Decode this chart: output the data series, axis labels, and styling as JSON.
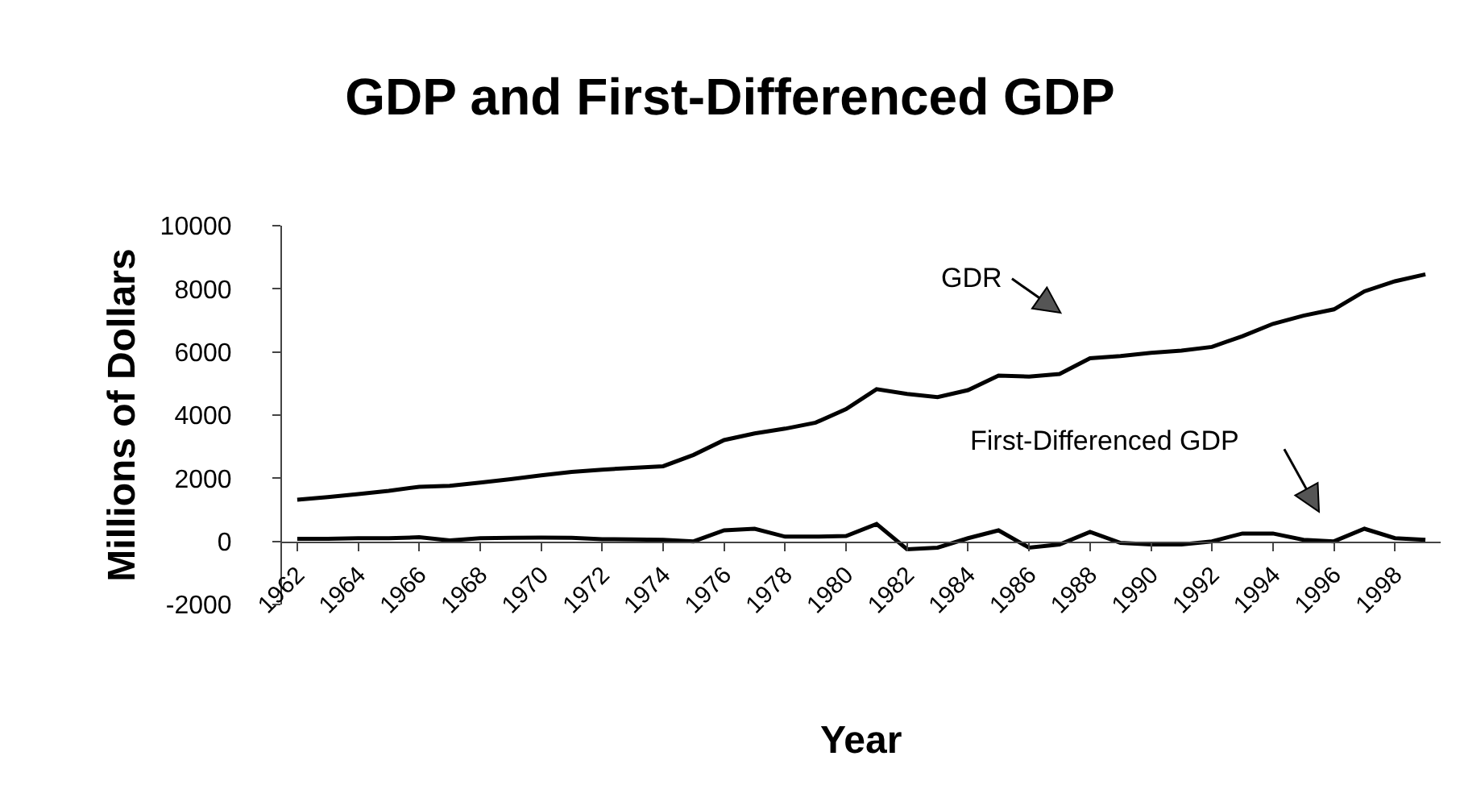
{
  "chart_data": {
    "type": "line",
    "title": "GDP and First-Differenced GDP",
    "xlabel": "Year",
    "ylabel": "Millions of Dollars",
    "categories": [
      "1962",
      null,
      "1964",
      null,
      "1966",
      null,
      "1968",
      null,
      "1970",
      null,
      "1972",
      null,
      "1974",
      null,
      "1976",
      null,
      "1978",
      null,
      "1980",
      null,
      "1982",
      null,
      "1984",
      null,
      "1986",
      null,
      "1988",
      null,
      "1990",
      null,
      "1992",
      null,
      "1994",
      null,
      "1996",
      null,
      "1998",
      null
    ],
    "series": [
      {
        "color": "#000000",
        "values": [
          1320,
          1400,
          1500,
          1600,
          1730,
          1760,
          1860,
          1970,
          2090,
          2200,
          2270,
          2330,
          2380,
          2740,
          3210,
          3420,
          3570,
          3760,
          4190,
          4820,
          4670,
          4570,
          4790,
          5250,
          5220,
          5300,
          5800,
          5870,
          5970,
          6040,
          6160,
          6500,
          6890,
          7150,
          7350,
          7920,
          8240,
          8460
        ]
      },
      {
        "color": "#000000",
        "values": [
          80,
          80,
          100,
          100,
          130,
          30,
          100,
          110,
          120,
          110,
          70,
          60,
          50,
          0,
          350,
          400,
          150,
          150,
          170,
          550,
          -250,
          -200,
          100,
          350,
          -200,
          -100,
          300,
          -50,
          -100,
          -100,
          0,
          250,
          250,
          50,
          0,
          400,
          100,
          50
        ]
      }
    ],
    "annotations": [
      "GDR",
      "First-Differenced GDP"
    ],
    "ylim": [
      -2000,
      10000
    ],
    "yticks": [
      -2000,
      0,
      2000,
      4000,
      6000,
      8000,
      10000
    ],
    "marker": "none",
    "line_style": "solid"
  }
}
